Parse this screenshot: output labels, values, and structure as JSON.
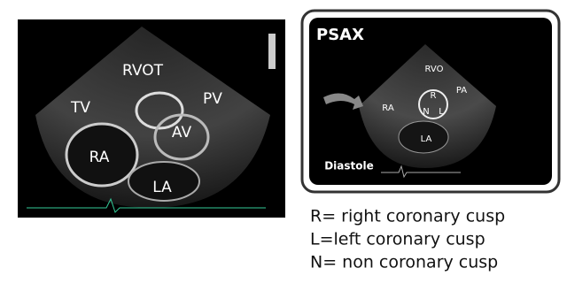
{
  "left_image": {
    "labels": [
      "RVOT",
      "TV",
      "PV",
      "AV",
      "RA",
      "LA"
    ]
  },
  "right_image": {
    "title": "PSAX",
    "labels": [
      "RVO",
      "RA",
      "R",
      "N",
      "L",
      "PA",
      "LA"
    ],
    "caption": "Diastole"
  },
  "legend": [
    "R= right coronary cusp",
    "L=left coronary cusp",
    "N= non coronary cusp"
  ]
}
